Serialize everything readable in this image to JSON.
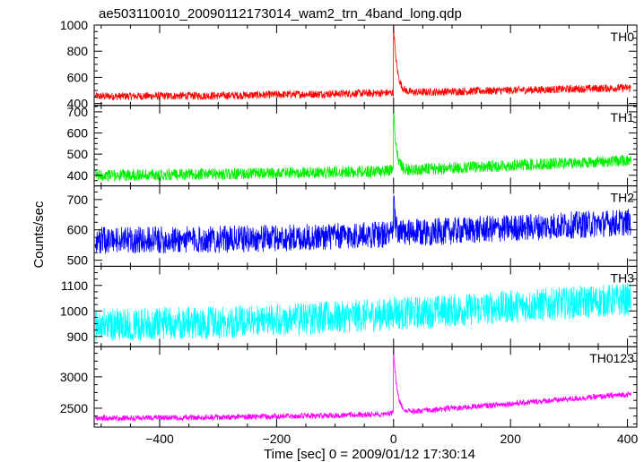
{
  "chart_data": {
    "type": "line",
    "title": "ae503110010_20090112173014_wam2_trn_4band_long.qdp",
    "xlabel": "Time [sec] 0 = 2009/01/12 17:30:14",
    "ylabel": "Counts/sec",
    "xlim": [
      -512,
      416
    ],
    "x_ticks": [
      -400,
      -200,
      0,
      200,
      400
    ],
    "grid": false,
    "panels": [
      {
        "name": "TH0",
        "color": "#ff0000",
        "ylim": [
          385,
          1000
        ],
        "y_ticks": [
          400,
          600,
          800,
          1000
        ],
        "baseline": {
          "x": [
            -500,
            -300,
            -100,
            -20,
            400
          ],
          "y": [
            455,
            460,
            475,
            480,
            520
          ]
        },
        "noise_halfwidth": 30,
        "peak": {
          "x": 0,
          "y": 1000,
          "decay_sec": 6
        }
      },
      {
        "name": "TH1",
        "color": "#00ee00",
        "ylim": [
          350,
          730
        ],
        "y_ticks": [
          400,
          500,
          600,
          700
        ],
        "baseline": {
          "x": [
            -500,
            -300,
            -100,
            -20,
            400
          ],
          "y": [
            400,
            405,
            415,
            420,
            470
          ]
        },
        "noise_halfwidth": 28,
        "peak": {
          "x": 0,
          "y": 710,
          "decay_sec": 5
        }
      },
      {
        "name": "TH2",
        "color": "#0000ff",
        "ylim": [
          480,
          745
        ],
        "y_ticks": [
          500,
          600,
          700
        ],
        "baseline": {
          "x": [
            -500,
            -300,
            -100,
            -20,
            400
          ],
          "y": [
            565,
            568,
            578,
            585,
            625
          ]
        },
        "noise_halfwidth": 45,
        "peak": {
          "x": 0,
          "y": 700,
          "decay_sec": 3
        }
      },
      {
        "name": "TH3",
        "color": "#00ffff",
        "ylim": [
          860,
          1175
        ],
        "y_ticks": [
          900,
          1000,
          1100
        ],
        "baseline": {
          "x": [
            -500,
            -300,
            -100,
            -20,
            400
          ],
          "y": [
            945,
            955,
            975,
            985,
            1045
          ]
        },
        "noise_halfwidth": 65,
        "peak": {
          "x": 0,
          "y": 1030,
          "decay_sec": 3
        }
      },
      {
        "name": "TH0123",
        "color": "#ff00ff",
        "ylim": [
          2200,
          3480
        ],
        "y_ticks": [
          2500,
          3000
        ],
        "baseline": {
          "x": [
            -500,
            -300,
            -100,
            -20,
            400
          ],
          "y": [
            2340,
            2355,
            2385,
            2410,
            2720
          ]
        },
        "noise_halfwidth": 45,
        "peak": {
          "x": 0,
          "y": 3450,
          "decay_sec": 6
        }
      }
    ]
  }
}
